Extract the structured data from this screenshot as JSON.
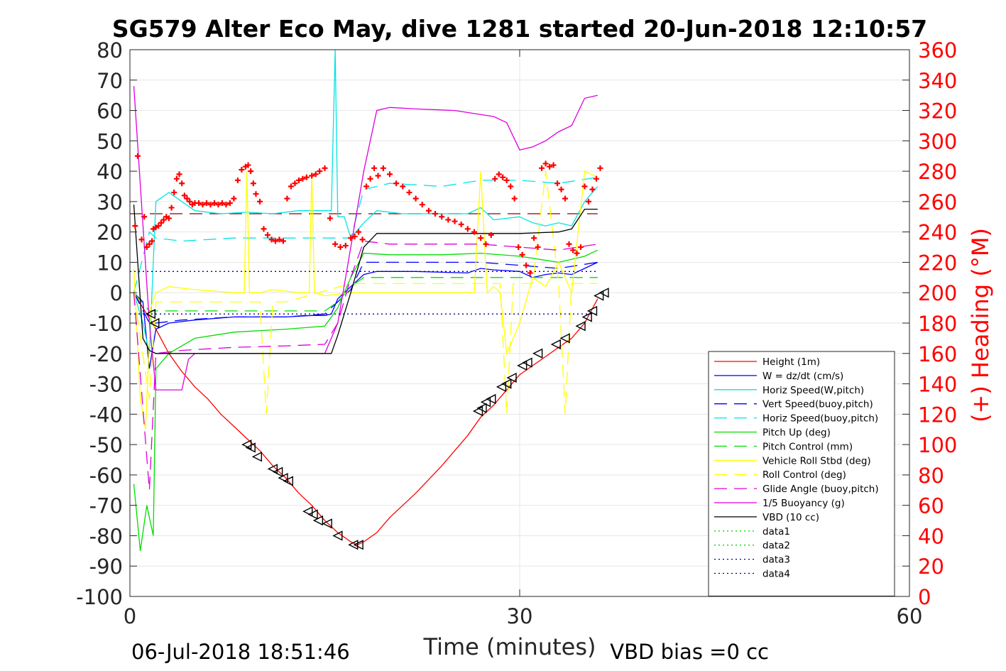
{
  "chart_data": {
    "type": "line",
    "title": "SG579 Alter Eco May, dive 1281 started 20-Jun-2018 12:10:57",
    "xlabel": "Time (minutes)",
    "ylabel_right": "(+) Heading (°M)",
    "footer_left": "06-Jul-2018 18:51:46",
    "footer_right": "VBD bias =0 cc",
    "xlim": [
      0,
      60
    ],
    "ylim": [
      -100,
      80
    ],
    "ylim_right": [
      0,
      360
    ],
    "x_ticks": [
      0,
      30,
      60
    ],
    "y_ticks": [
      -100,
      -90,
      -80,
      -70,
      -60,
      -50,
      -40,
      -30,
      -20,
      -10,
      0,
      10,
      20,
      30,
      40,
      50,
      60,
      70,
      80
    ],
    "y_ticks_right": [
      0,
      20,
      40,
      60,
      80,
      100,
      120,
      140,
      160,
      180,
      200,
      220,
      240,
      260,
      280,
      300,
      320,
      340,
      360
    ],
    "grid": true,
    "legend_position": "right",
    "colors": {
      "right_axis": "#ff0000",
      "axes": "#262626",
      "grid": "#e6e6e6"
    },
    "series": [
      {
        "name": "Height (1m)",
        "color": "#ff0000",
        "style": "solid",
        "x": [
          0.3,
          1,
          2,
          3,
          4,
          5,
          6,
          7,
          8,
          9,
          10,
          11,
          12,
          13,
          14,
          15,
          16,
          17,
          17.5,
          18,
          19,
          20,
          22,
          24,
          26,
          27,
          28,
          29,
          30,
          31,
          32,
          33,
          34,
          35,
          36
        ],
        "y": [
          0,
          -5,
          -12,
          -20,
          -26,
          -31,
          -35,
          -40,
          -44,
          -48,
          -52,
          -57,
          -61,
          -66,
          -70,
          -75,
          -79,
          -82,
          -83,
          -82,
          -79,
          -74,
          -66,
          -57,
          -47,
          -41,
          -37,
          -32,
          -27,
          -24,
          -21,
          -18,
          -15,
          -10,
          -2
        ]
      },
      {
        "name": "W = dz/dt (cm/s)",
        "color": "#0000ff",
        "style": "solid",
        "x": [
          0.3,
          1,
          1.5,
          2,
          3,
          5,
          8,
          10,
          12,
          14,
          15,
          15.5,
          16,
          17,
          18,
          19,
          22,
          26,
          27,
          28,
          30,
          31,
          32,
          33,
          34,
          35,
          36
        ],
        "y": [
          0,
          -3,
          -25,
          -12,
          -10,
          -9,
          -8,
          -8,
          -8,
          -7.5,
          -7.5,
          -7,
          -2,
          2,
          6,
          7,
          7,
          6.5,
          8,
          7.5,
          7,
          5,
          6,
          6.5,
          6,
          8,
          10
        ]
      },
      {
        "name": "Horiz Speed(W,pitch)",
        "color": "#00e5e5",
        "style": "solid",
        "x": [
          0.3,
          1,
          1.5,
          2,
          3,
          5,
          7,
          9,
          11,
          13,
          15,
          15.5,
          15.8,
          16,
          16.5,
          17,
          18,
          19,
          21,
          24,
          26,
          27,
          28,
          30,
          31,
          32,
          33,
          34,
          35,
          36
        ],
        "y": [
          0,
          -10,
          -20,
          30,
          33,
          27,
          26,
          26.5,
          26,
          27,
          27,
          27,
          80,
          25,
          25,
          18,
          23,
          27,
          26,
          26,
          26,
          28,
          24,
          25,
          23,
          22,
          23,
          22,
          30,
          35
        ]
      },
      {
        "name": "Vert Speed(buoy,pitch)",
        "color": "#0000ff",
        "style": "dashed",
        "x": [
          0.3,
          1.5,
          2,
          4,
          8,
          12,
          15,
          17,
          18,
          20,
          24,
          27,
          30,
          33,
          36
        ],
        "y": [
          0,
          -10,
          -10,
          -9,
          -8,
          -8,
          -7,
          1,
          10,
          10,
          10,
          10,
          9,
          8,
          10
        ]
      },
      {
        "name": "Horiz Speed(buoy,pitch)",
        "color": "#00e5e5",
        "style": "dashed",
        "x": [
          0.3,
          1.5,
          2,
          4,
          8,
          12,
          15,
          17,
          18,
          20,
          24,
          27,
          30,
          33,
          36
        ],
        "y": [
          0,
          20,
          18,
          17,
          18,
          18,
          18,
          18,
          34,
          36,
          35,
          37,
          37,
          36,
          38
        ]
      },
      {
        "name": "Pitch Up (deg)",
        "color": "#00dd00",
        "style": "solid",
        "x": [
          0.3,
          0.8,
          1.3,
          1.8,
          2,
          3,
          5,
          8,
          12,
          15,
          16,
          17,
          18,
          20,
          24,
          27,
          30,
          33,
          35,
          36
        ],
        "y": [
          -63,
          -85,
          -70,
          -80,
          -25,
          -20,
          -15,
          -13,
          -12,
          -11,
          -5,
          5,
          13,
          12.5,
          12.5,
          13,
          12,
          10,
          12,
          14
        ]
      },
      {
        "name": "Pitch Control (mm)",
        "color": "#00dd00",
        "style": "dashed",
        "x": [
          0.3,
          1.5,
          2,
          8,
          15,
          16,
          17,
          18,
          24,
          30,
          36
        ],
        "y": [
          0,
          -6,
          -6,
          -6,
          -6,
          -3,
          2,
          5,
          5,
          5,
          5
        ]
      },
      {
        "name": "Vehicle Roll Stbd (deg)",
        "color": "#ffff00",
        "style": "solid",
        "x": [
          0.3,
          0.8,
          1.2,
          1.6,
          2,
          3,
          5,
          8,
          8.8,
          9,
          9.2,
          10,
          11,
          13,
          13.8,
          14,
          14.2,
          15,
          17,
          20,
          24,
          26.5,
          27,
          27.5,
          28,
          28.5,
          29,
          30,
          31,
          32,
          33,
          34,
          35,
          36
        ],
        "y": [
          8,
          -35,
          -45,
          -5,
          0,
          2,
          1,
          0,
          0,
          40,
          0,
          0,
          1,
          0,
          0,
          40,
          0,
          -1,
          0,
          0,
          0,
          0,
          40,
          0,
          2,
          0,
          -20,
          -10,
          5,
          2,
          10,
          0,
          40,
          38
        ]
      },
      {
        "name": "Roll Control (deg)",
        "color": "#ffff00",
        "style": "dashed",
        "x": [
          0.3,
          1.5,
          2,
          10,
          10.5,
          11,
          12,
          17,
          28.5,
          29,
          29.5,
          31,
          32,
          33,
          33.5,
          34,
          35,
          36
        ],
        "y": [
          0,
          -35,
          -3,
          -3,
          -40,
          -3,
          -3,
          3,
          3,
          -40,
          3,
          3,
          40,
          3,
          -40,
          3,
          3,
          3
        ]
      },
      {
        "name": "Glide Angle (buoy,pitch)",
        "color": "#dd00dd",
        "style": "dashed",
        "x": [
          0.3,
          1.5,
          2,
          4,
          8,
          12,
          15,
          16,
          17,
          18,
          20,
          24,
          27,
          30,
          33,
          36
        ],
        "y": [
          0,
          -65,
          -20,
          -19,
          -18,
          -17.5,
          -17,
          -10,
          5,
          17,
          16,
          16,
          16,
          15,
          14,
          16
        ]
      },
      {
        "name": "1/5 Buoyancy (g)",
        "color": "#dd00dd",
        "style": "solid",
        "x": [
          0.3,
          1.5,
          2,
          4,
          4.5,
          5,
          15,
          16,
          17,
          18,
          19,
          20,
          22,
          25,
          28,
          29,
          30,
          31,
          32,
          33,
          34,
          35,
          36
        ],
        "y": [
          68,
          -10,
          -32,
          -32,
          -22,
          -20,
          -20,
          -10,
          15,
          40,
          60,
          61,
          60.5,
          60,
          58,
          56,
          47,
          48,
          50,
          53,
          55,
          64,
          65
        ]
      },
      {
        "name": "VBD (10 cc)",
        "color": "#000000",
        "style": "solid",
        "x": [
          0.3,
          1,
          1.5,
          2,
          15.5,
          16,
          17,
          18,
          19,
          30,
          33,
          34,
          35,
          36
        ],
        "y": [
          29,
          -15,
          -19,
          -20,
          -20,
          -14,
          0,
          15,
          19.5,
          19.5,
          20,
          21,
          27.5,
          27.5
        ]
      },
      {
        "name": "data1",
        "color": "#00dd00",
        "style": "dotted",
        "x": [
          0,
          36
        ],
        "y": [
          7,
          7
        ],
        "draw": false
      },
      {
        "name": "data2",
        "color": "#00dd00",
        "style": "dotted",
        "x": [
          0,
          36
        ],
        "y": [
          -7,
          -7
        ],
        "draw": false
      },
      {
        "name": "data3",
        "color": "#000080",
        "style": "dotted",
        "x": [
          0,
          36
        ],
        "y": [
          7,
          7
        ]
      },
      {
        "name": "data4",
        "color": "#000080",
        "style": "dotted",
        "x": [
          0,
          36
        ],
        "y": [
          -7,
          -7
        ]
      }
    ],
    "reference_lines": [
      {
        "color": "#8b0000",
        "style": "dashed",
        "y": 26,
        "x": [
          0,
          36
        ]
      }
    ],
    "heading_markers": {
      "color": "#ff0000",
      "marker": "+",
      "x": [
        0.4,
        0.6,
        0.9,
        1.1,
        1.3,
        1.5,
        1.7,
        1.8,
        2.0,
        2.2,
        2.4,
        2.6,
        2.8,
        3.0,
        3.2,
        3.4,
        3.6,
        3.8,
        4.0,
        4.2,
        4.4,
        4.6,
        4.8,
        5.0,
        5.3,
        5.6,
        5.9,
        6.2,
        6.5,
        6.8,
        7.1,
        7.4,
        7.7,
        8.0,
        8.3,
        8.6,
        8.9,
        9.1,
        9.3,
        9.5,
        9.7,
        10.0,
        10.3,
        10.6,
        10.9,
        11.2,
        11.5,
        11.8,
        12.1,
        12.4,
        12.7,
        13.0,
        13.3,
        13.6,
        14.0,
        14.3,
        14.6,
        15.0,
        15.4,
        15.8,
        16.2,
        16.6,
        17.0,
        17.3,
        17.6,
        17.9,
        18.2,
        18.5,
        18.8,
        19.1,
        19.5,
        20.0,
        20.5,
        21.0,
        21.5,
        22.0,
        22.5,
        23.0,
        23.5,
        24.0,
        24.5,
        25.0,
        25.5,
        26.0,
        26.5,
        27.0,
        27.4,
        27.8,
        28.1,
        28.4,
        28.7,
        29.0,
        29.3,
        29.6,
        29.9,
        30.2,
        30.5,
        30.8,
        31.1,
        31.4,
        31.7,
        32.0,
        32.3,
        32.6,
        32.9,
        33.2,
        33.5,
        33.8,
        34.1,
        34.4,
        34.7,
        35.0,
        35.3,
        35.6,
        35.9,
        36.2
      ],
      "y": [
        244,
        290,
        235,
        250,
        230,
        232,
        234,
        242,
        243,
        244,
        246,
        248,
        250,
        249,
        256,
        266,
        275,
        278,
        272,
        264,
        262,
        260,
        258,
        259,
        259,
        258,
        259,
        258,
        259,
        258,
        259,
        258,
        259,
        262,
        274,
        281,
        283,
        284,
        280,
        272,
        265,
        260,
        242,
        238,
        235,
        234,
        235,
        234,
        262,
        270,
        272,
        274,
        275,
        276,
        277,
        278,
        280,
        282,
        249,
        232,
        230,
        231,
        236,
        237,
        240,
        235,
        270,
        275,
        282,
        277,
        282,
        278,
        272,
        270,
        266,
        262,
        258,
        254,
        252,
        250,
        248,
        247,
        245,
        242,
        240,
        236,
        232,
        238,
        275,
        278,
        276,
        274,
        270,
        262,
        230,
        225,
        218,
        213,
        236,
        230,
        282,
        285,
        283,
        284,
        272,
        268,
        262,
        232,
        228,
        226,
        230,
        270,
        260,
        268,
        275,
        282
      ]
    },
    "triangle_markers": {
      "color": "#000000",
      "x": [
        1.6,
        1.9,
        9.0,
        9.3,
        9.8,
        11.0,
        11.4,
        11.8,
        12.2,
        13.7,
        14.1,
        14.5,
        15.2,
        16.0,
        17.2,
        17.6,
        26.8,
        27.1,
        27.4,
        27.8,
        28.6,
        29.0,
        29.4,
        30.2,
        30.6,
        31.4,
        32.8,
        33.5,
        34.7,
        35.2,
        35.6,
        36.1,
        36.5
      ],
      "y": [
        -7,
        -10,
        -50,
        -51,
        -54,
        -58,
        -59,
        -61,
        -62,
        -72,
        -73,
        -75,
        -76,
        -80,
        -83,
        -83,
        -39,
        -38,
        -36,
        -35,
        -31,
        -30,
        -28,
        -24,
        -23,
        -20,
        -17,
        -15,
        -11,
        -8,
        -6,
        -1,
        0
      ]
    }
  }
}
